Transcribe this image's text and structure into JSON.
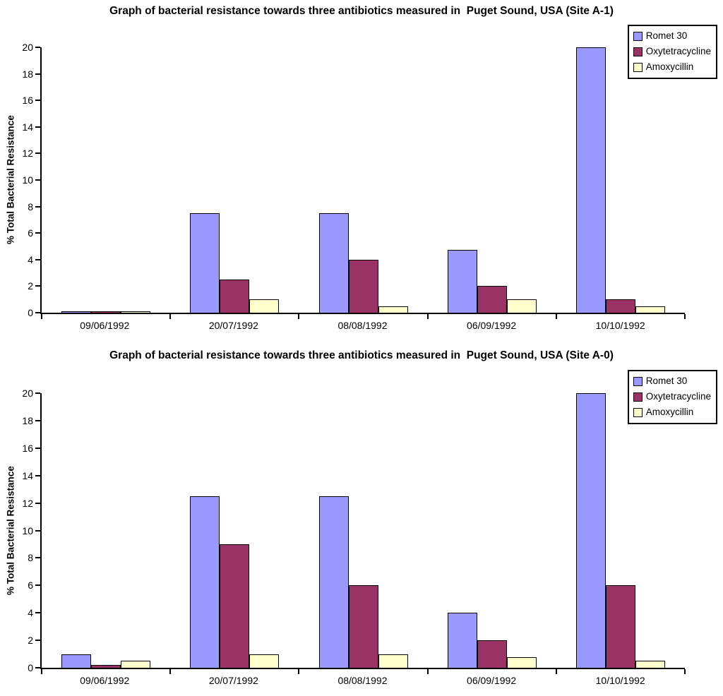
{
  "chart_data": [
    {
      "type": "bar",
      "title": "Graph of bacterial resistance towards three antibiotics measured in  Puget Sound, USA (Site A-1)",
      "ylabel": "% Total Bacterial Resistance",
      "xlabel": "",
      "categories": [
        "09/06/1992",
        "20/07/1992",
        "08/08/1992",
        "06/09/1992",
        "10/10/1992"
      ],
      "series": [
        {
          "name": "Romet 30",
          "color": "#9999FF",
          "values": [
            0.1,
            7.5,
            7.5,
            4.75,
            20
          ]
        },
        {
          "name": "Oxytetracycline",
          "color": "#993366",
          "values": [
            0.1,
            2.5,
            4,
            2,
            1
          ]
        },
        {
          "name": "Amoxycillin",
          "color": "#FFFFCC",
          "values": [
            0.1,
            1,
            0.5,
            1,
            0.5
          ]
        }
      ],
      "ylim": [
        0,
        20
      ],
      "ytick_step": 2,
      "grid": false,
      "legend_position": "top-right",
      "bar_border_color": "#000000"
    },
    {
      "type": "bar",
      "title": "Graph of bacterial resistance towards three antibiotics measured in  Puget Sound, USA (Site A-0)",
      "ylabel": "% Total Bacterial Resistance",
      "xlabel": "",
      "categories": [
        "09/06/1992",
        "20/07/1992",
        "08/08/1992",
        "06/09/1992",
        "10/10/1992"
      ],
      "series": [
        {
          "name": "Romet 30",
          "color": "#9999FF",
          "values": [
            1,
            12.5,
            12.5,
            4,
            20
          ]
        },
        {
          "name": "Oxytetracycline",
          "color": "#993366",
          "values": [
            0.2,
            9,
            6,
            2,
            6
          ]
        },
        {
          "name": "Amoxycillin",
          "color": "#FFFFCC",
          "values": [
            0.5,
            1,
            1,
            0.75,
            0.5
          ]
        }
      ],
      "ylim": [
        0,
        20
      ],
      "ytick_step": 2,
      "grid": false,
      "legend_position": "top-right",
      "bar_border_color": "#000000"
    }
  ]
}
